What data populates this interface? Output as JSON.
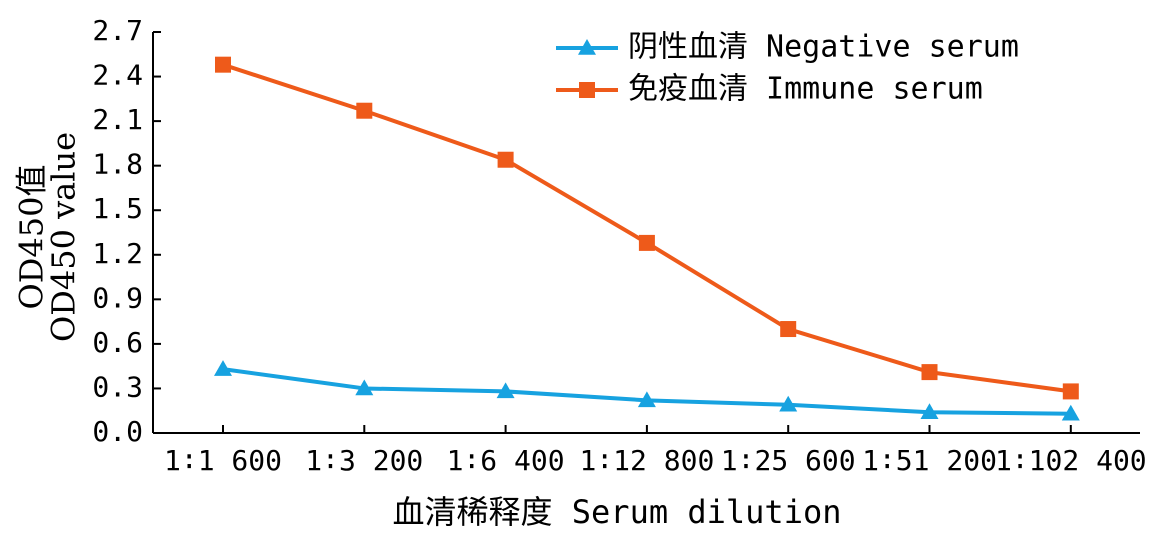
{
  "chart_data": {
    "type": "line",
    "x": [
      "1∶1 600",
      "1∶3 200",
      "1∶6 400",
      "1∶12 800",
      "1∶25 600",
      "1∶51 200",
      "1∶102 400"
    ],
    "xlabel": "血清稀释度 Serum dilution",
    "ylabel_line1": "OD450值",
    "ylabel_line2": "OD450 value",
    "ylim": [
      0,
      2.7
    ],
    "yticks": [
      "0.0",
      "0.3",
      "0.6",
      "0.9",
      "1.2",
      "1.5",
      "1.8",
      "2.1",
      "2.4",
      "2.7"
    ],
    "legend_position": "top-right",
    "grid": false,
    "series": [
      {
        "name": "阴性血清 Negative serum",
        "color": "#17a2e0",
        "marker": "triangle",
        "values": [
          0.43,
          0.3,
          0.28,
          0.22,
          0.19,
          0.14,
          0.13
        ]
      },
      {
        "name": "免疫血清 Immune serum",
        "color": "#ee5a1a",
        "marker": "square",
        "values": [
          2.48,
          2.17,
          1.84,
          1.28,
          0.7,
          0.41,
          0.28
        ]
      }
    ]
  }
}
